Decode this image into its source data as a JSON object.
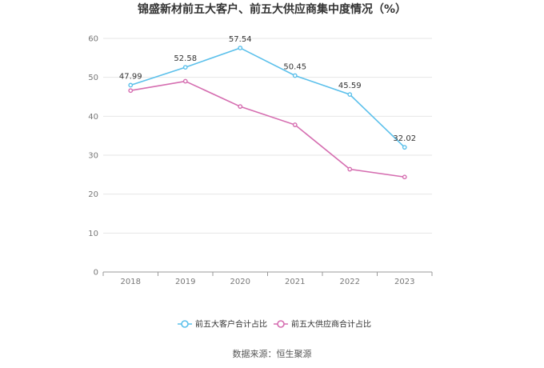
{
  "chart_data": {
    "type": "line",
    "title": "锦盛新材前五大客户、前五大供应商集中度情况（%）",
    "categories": [
      "2018",
      "2019",
      "2020",
      "2021",
      "2022",
      "2023"
    ],
    "ylim": [
      0,
      60
    ],
    "yticks": [
      "0",
      "10",
      "20",
      "30",
      "40",
      "50",
      "60"
    ],
    "grid": true,
    "legend_position": "bottom",
    "series": [
      {
        "name": "前五大客户合计占比",
        "color": "#5bc0eb",
        "values": [
          47.99,
          52.58,
          57.54,
          50.45,
          45.59,
          32.02
        ],
        "labels": [
          "47.99",
          "52.58",
          "57.54",
          "50.45",
          "45.59",
          "32.02"
        ]
      },
      {
        "name": "前五大供应商合计占比",
        "color": "#d56db0",
        "values": [
          46.6,
          49.0,
          42.5,
          37.8,
          26.4,
          24.4
        ],
        "labels": []
      }
    ]
  },
  "source_text": "数据来源：恒生聚源"
}
